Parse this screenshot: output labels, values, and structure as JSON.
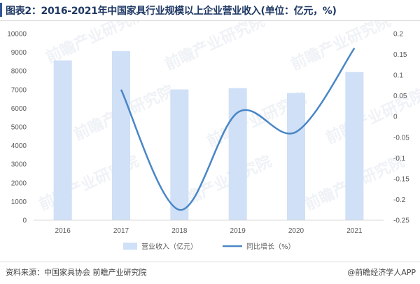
{
  "header": {
    "title": "图表2：2016-2021年中国家具行业规模以上企业营业收入(单位：亿元，%)"
  },
  "watermark": {
    "text": "前瞻产业研究院"
  },
  "chart_data": {
    "type": "bar",
    "categories": [
      "2016",
      "2017",
      "2018",
      "2019",
      "2020",
      "2021"
    ],
    "series": [
      {
        "name": "营业收入（亿元）",
        "type": "bar",
        "axis": "left",
        "color": "#cfe0f7",
        "values": [
          8560,
          9060,
          7010,
          7080,
          6820,
          7940
        ]
      },
      {
        "name": "同比增长（%）",
        "type": "line",
        "axis": "right",
        "color": "#4a86c6",
        "values": [
          null,
          0.065,
          -0.225,
          0.01,
          -0.037,
          0.165
        ]
      }
    ],
    "y_left": {
      "min": 0,
      "max": 10000,
      "ticks": [
        "0",
        "1000",
        "2000",
        "3000",
        "4000",
        "5000",
        "6000",
        "7000",
        "8000",
        "9000",
        "10000"
      ]
    },
    "y_right": {
      "min": -0.25,
      "max": 0.2,
      "ticks": [
        "-0.25",
        "-0.2",
        "-0.15",
        "-0.1",
        "-0.05",
        "0",
        "0.05",
        "0.1",
        "0.15",
        "0.2"
      ]
    },
    "grid": false,
    "legend": "bottom-center"
  },
  "footer": {
    "source": "资料来源：中国家具协会 前瞻产业研究院",
    "brand": "@前瞻经济学人APP"
  }
}
